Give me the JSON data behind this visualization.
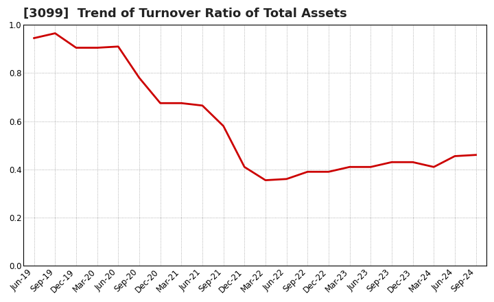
{
  "title": "[3099]  Trend of Turnover Ratio of Total Assets",
  "x_labels": [
    "Jun-19",
    "Sep-19",
    "Dec-19",
    "Mar-20",
    "Jun-20",
    "Sep-20",
    "Dec-20",
    "Mar-21",
    "Jun-21",
    "Sep-21",
    "Dec-21",
    "Mar-22",
    "Jun-22",
    "Sep-22",
    "Dec-22",
    "Mar-23",
    "Jun-23",
    "Sep-23",
    "Dec-23",
    "Mar-24",
    "Jun-24",
    "Sep-24"
  ],
  "values": [
    0.945,
    0.965,
    0.905,
    0.905,
    0.91,
    0.78,
    0.675,
    0.675,
    0.665,
    0.58,
    0.41,
    0.355,
    0.36,
    0.39,
    0.39,
    0.41,
    0.41,
    0.43,
    0.43,
    0.41,
    0.455,
    0.46
  ],
  "line_color": "#cc0000",
  "line_width": 2.0,
  "ylim": [
    0.0,
    1.0
  ],
  "yticks": [
    0.0,
    0.2,
    0.4,
    0.6,
    0.8,
    1.0
  ],
  "grid_color": "#999999",
  "bg_color": "#ffffff",
  "plot_bg_color": "#ffffff",
  "title_fontsize": 13,
  "tick_fontsize": 8.5,
  "title_color": "#222222"
}
